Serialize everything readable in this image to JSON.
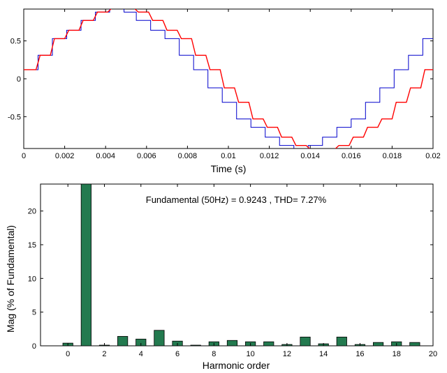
{
  "chart_data": [
    {
      "type": "line",
      "title": "",
      "xlabel": "Time (s)",
      "ylabel": "",
      "xlim": [
        0,
        0.02
      ],
      "ylim": [
        -0.92,
        0.92
      ],
      "x_ticks": [
        0,
        0.002,
        0.004,
        0.006,
        0.008,
        0.01,
        0.012,
        0.014,
        0.016,
        0.018,
        0.02
      ],
      "x_tick_labels": [
        "0",
        "0.002",
        "0.004",
        "0.006",
        "0.008",
        "0.01",
        "0.012",
        "0.014",
        "0.016",
        "0.018",
        "0.02"
      ],
      "y_ticks": [
        0.5,
        0,
        -0.5
      ],
      "y_tick_labels": [
        "0.5",
        "0",
        "-0.5"
      ],
      "grid": false,
      "series": [
        {
          "color": "#0000cc",
          "style": "step",
          "x": [
            0,
            0.0007,
            0.0007,
            0.0014,
            0.0014,
            0.0021,
            0.0021,
            0.0028,
            0.0028,
            0.0035,
            0.0035,
            0.0042,
            0.0042,
            0.0049,
            0.0049,
            0.0055,
            0.0055,
            0.0062,
            0.0062,
            0.0069,
            0.0069,
            0.0076,
            0.0076,
            0.0083,
            0.0083,
            0.009,
            0.009,
            0.0097,
            0.0097,
            0.0104,
            0.0104,
            0.0111,
            0.0111,
            0.0118,
            0.0118,
            0.0125,
            0.0125,
            0.0132,
            0.0132,
            0.0139,
            0.0139,
            0.0146,
            0.0146,
            0.0153,
            0.0153,
            0.016,
            0.016,
            0.0167,
            0.0167,
            0.0174,
            0.0174,
            0.0181,
            0.0181,
            0.0188,
            0.0188,
            0.0195,
            0.0195,
            0.02
          ],
          "y": [
            0.12,
            0.12,
            0.31,
            0.31,
            0.53,
            0.53,
            0.64,
            0.64,
            0.77,
            0.77,
            0.88,
            0.88,
            0.93,
            0.93,
            0.88,
            0.88,
            0.77,
            0.77,
            0.64,
            0.64,
            0.53,
            0.53,
            0.31,
            0.31,
            0.12,
            0.12,
            -0.12,
            -0.12,
            -0.31,
            -0.31,
            -0.53,
            -0.53,
            -0.64,
            -0.64,
            -0.77,
            -0.77,
            -0.88,
            -0.88,
            -0.93,
            -0.93,
            -0.88,
            -0.88,
            -0.77,
            -0.77,
            -0.64,
            -0.64,
            -0.53,
            -0.53,
            -0.31,
            -0.31,
            -0.12,
            -0.12,
            0.12,
            0.12,
            0.31,
            0.31,
            0.53,
            0.53
          ]
        },
        {
          "color": "#ff0000",
          "style": "step-smoothed",
          "x": [
            0,
            0.0006,
            0.0008,
            0.0013,
            0.0015,
            0.002,
            0.0022,
            0.0027,
            0.0029,
            0.0034,
            0.0036,
            0.0041,
            0.0043,
            0.0048,
            0.005,
            0.0054,
            0.0056,
            0.0061,
            0.0063,
            0.0068,
            0.007,
            0.0075,
            0.0077,
            0.0082,
            0.0084,
            0.0089,
            0.0091,
            0.0096,
            0.0098,
            0.0103,
            0.0105,
            0.011,
            0.0112,
            0.0117,
            0.0119,
            0.0124,
            0.0126,
            0.0131,
            0.0133,
            0.0138,
            0.014,
            0.0145,
            0.0147,
            0.0152,
            0.0154,
            0.0159,
            0.0161,
            0.0166,
            0.0168,
            0.0173,
            0.0175,
            0.018,
            0.0182,
            0.0187,
            0.0189,
            0.0194,
            0.0196,
            0.02
          ],
          "y": [
            0.12,
            0.12,
            0.31,
            0.31,
            0.53,
            0.53,
            0.64,
            0.64,
            0.77,
            0.77,
            0.88,
            0.88,
            0.93,
            0.93,
            0.93,
            0.93,
            0.88,
            0.88,
            0.77,
            0.77,
            0.64,
            0.64,
            0.53,
            0.53,
            0.31,
            0.31,
            0.12,
            0.12,
            -0.12,
            -0.12,
            -0.31,
            -0.31,
            -0.53,
            -0.53,
            -0.64,
            -0.64,
            -0.77,
            -0.77,
            -0.88,
            -0.88,
            -0.93,
            -0.93,
            -0.93,
            -0.93,
            -0.88,
            -0.88,
            -0.77,
            -0.77,
            -0.64,
            -0.64,
            -0.53,
            -0.53,
            -0.31,
            -0.31,
            -0.12,
            -0.12,
            0.12,
            0.12
          ]
        }
      ]
    },
    {
      "type": "bar",
      "title": "Fundamental (50Hz) = 0.9243 , THD= 7.27%",
      "xlabel": "Harmonic order",
      "ylabel": "Mag (% of Fundamental)",
      "xlim": [
        -1.5,
        20
      ],
      "ylim": [
        0,
        24
      ],
      "x_ticks": [
        0,
        2,
        4,
        6,
        8,
        10,
        12,
        14,
        16,
        18,
        20
      ],
      "x_tick_labels": [
        "0",
        "2",
        "4",
        "6",
        "8",
        "10",
        "12",
        "14",
        "16",
        "18",
        "20"
      ],
      "y_ticks": [
        0,
        5,
        10,
        15,
        20
      ],
      "y_tick_labels": [
        "0",
        "5",
        "10",
        "15",
        "20"
      ],
      "grid": false,
      "bar_color": "#237a4f",
      "categories": [
        0,
        1,
        2,
        3,
        4,
        5,
        6,
        7,
        8,
        9,
        10,
        11,
        12,
        13,
        14,
        15,
        16,
        17,
        18,
        19
      ],
      "values": [
        0.4,
        24,
        0.1,
        1.4,
        1.0,
        2.3,
        0.7,
        0.1,
        0.6,
        0.8,
        0.6,
        0.6,
        0.2,
        1.3,
        0.3,
        1.3,
        0.2,
        0.5,
        0.6,
        0.5
      ]
    }
  ]
}
